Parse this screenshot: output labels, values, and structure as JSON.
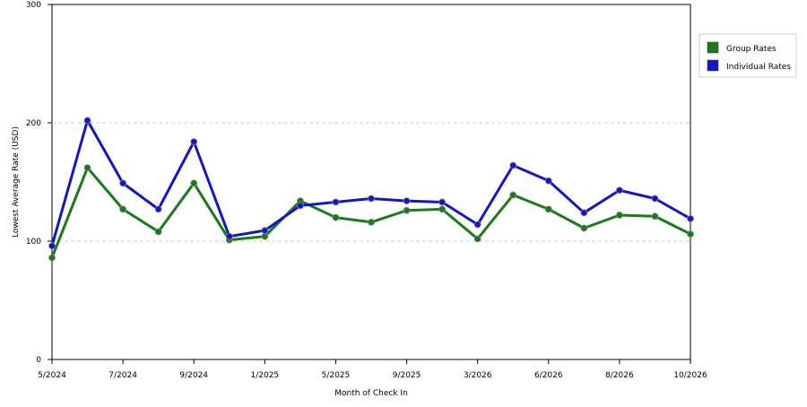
{
  "chart_data": {
    "type": "line",
    "x_label": "Month of Check In",
    "y_label": "Lowest Average Rate (USD)",
    "categories": [
      "5/2024",
      null,
      "7/2024",
      null,
      "9/2024",
      null,
      "1/2025",
      null,
      "5/2025",
      null,
      "9/2025",
      null,
      "3/2026",
      null,
      "6/2026",
      null,
      "8/2026",
      null,
      "10/2026"
    ],
    "series": [
      {
        "name": "Group Rates",
        "color": "#1a7a1a",
        "values": [
          86,
          162,
          127,
          108,
          149,
          101,
          104,
          134,
          120,
          116,
          126,
          127,
          102,
          139,
          127,
          111,
          122,
          121,
          106
        ]
      },
      {
        "name": "Individual Rates",
        "color": "#1515c8",
        "values": [
          96,
          202,
          149,
          127,
          184,
          104,
          109,
          130,
          133,
          136,
          134,
          133,
          114,
          164,
          151,
          124,
          143,
          136,
          119
        ]
      }
    ],
    "ylim": [
      0,
      300
    ],
    "yticks": [
      0,
      100,
      200,
      300
    ],
    "grid": true,
    "legend": "right"
  }
}
